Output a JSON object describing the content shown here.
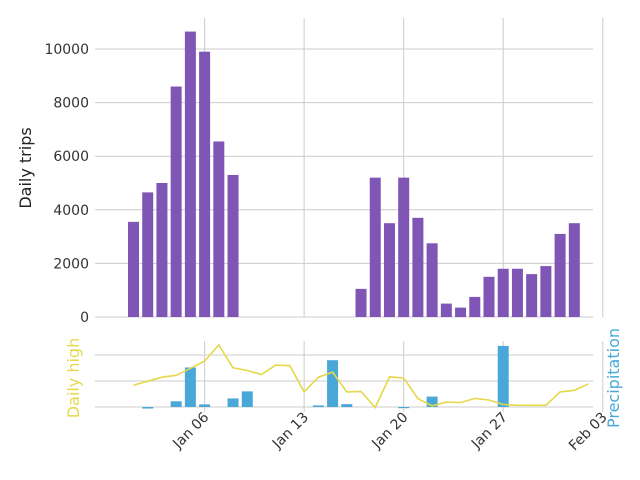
{
  "chart_data": [
    {
      "type": "bar",
      "name": "trips",
      "ylabel": "Daily trips",
      "ylim": [
        0,
        11000
      ],
      "yticks": [
        0,
        2000,
        4000,
        6000,
        8000,
        10000
      ],
      "ytick_labels": [
        "0",
        "2000",
        "4000",
        "6000",
        "8000",
        "10000"
      ],
      "x_start_day": 1,
      "values": [
        3550,
        4650,
        5000,
        8600,
        10650,
        9900,
        6550,
        5300,
        0,
        0,
        0,
        0,
        0,
        0,
        0,
        0,
        1050,
        5200,
        3500,
        5200,
        3700,
        2750,
        500,
        350,
        750,
        1500,
        1800,
        1800,
        1600,
        1900,
        3100,
        3500
      ],
      "color": "#7f55b5"
    },
    {
      "type": "bar",
      "name": "precipitation",
      "ylabel": "Precipitation",
      "ylim": [
        -0.1,
        2.2
      ],
      "gridlines": [
        0,
        1,
        2
      ],
      "x_start_day": 2,
      "values": [
        -0.06,
        0,
        0.22,
        1.52,
        0.1,
        0,
        0.33,
        0.6,
        0,
        0,
        0,
        0,
        0.06,
        1.8,
        0.11,
        0,
        0,
        0,
        -0.04,
        0,
        0.4,
        0,
        0,
        0,
        0,
        2.35
      ],
      "color": "#4aa8d8"
    },
    {
      "type": "line",
      "name": "daily-high",
      "ylabel": "Daily high",
      "ylim": [
        0.5,
        3.0
      ],
      "x_start_day": 1,
      "values": [
        1.35,
        1.5,
        1.65,
        1.72,
        1.98,
        2.25,
        2.85,
        2.0,
        1.9,
        1.75,
        2.1,
        2.08,
        1.1,
        1.65,
        1.84,
        1.1,
        1.12,
        0.52,
        1.66,
        1.62,
        0.85,
        0.58,
        0.72,
        0.7,
        0.86,
        0.8,
        0.63,
        0.6,
        0.6,
        0.6,
        1.1,
        1.16,
        1.4
      ],
      "color": "#e5d84a"
    }
  ],
  "x_axis": {
    "ticks": [
      {
        "day": 6,
        "label": "Jan 06"
      },
      {
        "day": 13,
        "label": "Jan 13"
      },
      {
        "day": 20,
        "label": "Jan 20"
      },
      {
        "day": 27,
        "label": "Jan 27"
      },
      {
        "day": 34,
        "label": "Feb 03"
      }
    ]
  }
}
